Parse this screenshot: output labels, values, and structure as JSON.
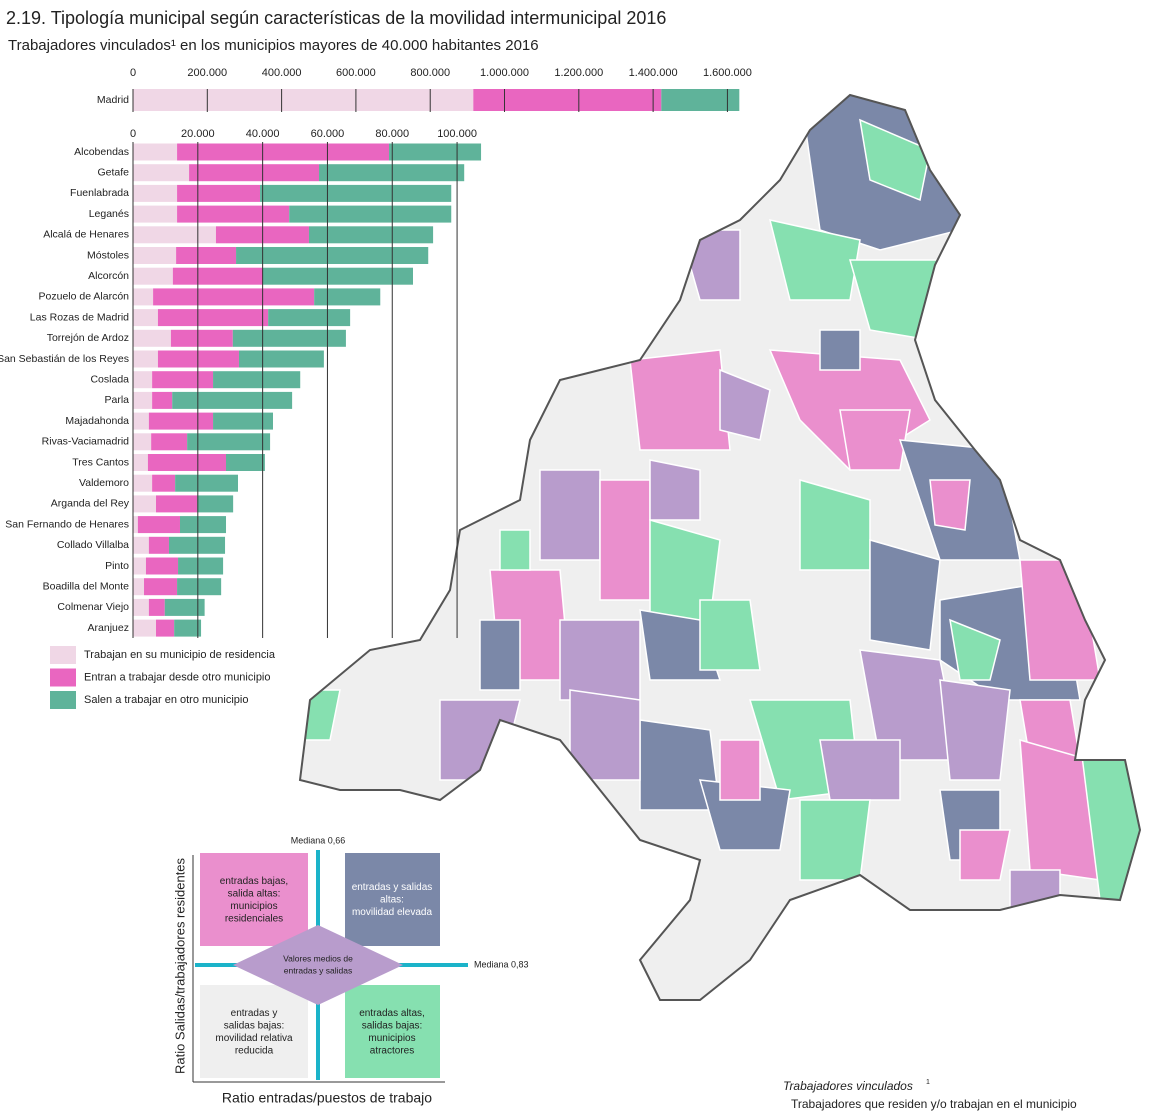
{
  "title": "2.19. Tipología municipal según características de la movilidad intermunicipal 2016",
  "subtitle": "Trabajadores vinculados¹ en los municipios mayores de 40.000 habitantes 2016",
  "chart_data": [
    {
      "type": "bar",
      "orientation": "horizontal",
      "stacked": true,
      "categories": [
        "Madrid"
      ],
      "series": [
        {
          "color": "#f0d7e6",
          "values": [
            916000
          ]
        },
        {
          "color": "#e966c0",
          "values": [
            506000
          ]
        },
        {
          "color": "#5fb39a",
          "values": [
            210000
          ]
        }
      ],
      "xlim": [
        0,
        1650000
      ],
      "xticks": [
        0,
        {
          "value": 200000,
          "label": "200.000"
        },
        {
          "value": 400000,
          "label": "400.000"
        },
        {
          "value": 600000,
          "label": "600.000"
        },
        {
          "value": 800000,
          "label": "800.000"
        },
        {
          "value": 1000000,
          "label": "1.000.000"
        },
        {
          "value": 1200000,
          "label": "1.200.000"
        },
        {
          "value": 1400000,
          "label": "1.400.000"
        },
        {
          "value": 1600000,
          "label": "1.600.000"
        }
      ],
      "grid": true
    },
    {
      "type": "bar",
      "orientation": "horizontal",
      "stacked": true,
      "categories": [
        "Alcobendas",
        "Getafe",
        "Fuenlabrada",
        "Leganés",
        "Alcalá de Henares",
        "Móstoles",
        "Alcorcón",
        "Pozuelo de Alarcón",
        "Las Rozas de Madrid",
        "Torrejón de Ardoz",
        "San Sebastián de los Reyes",
        "Coslada",
        "Parla",
        "Majadahonda",
        "Rivas-Vaciamadrid",
        "Tres Cantos",
        "Valdemoro",
        "Arganda del Rey",
        "San Fernando de Henares",
        "Collado Villalba",
        "Pinto",
        "Boadilla del Monte",
        "Colmenar Viejo",
        "Aranjuez"
      ],
      "series": [
        {
          "name": "Trabajan en su municipio de residencia",
          "color": "#f0d7e6",
          "values": [
            13600,
            17300,
            13600,
            13600,
            25600,
            13300,
            12300,
            6200,
            7700,
            11700,
            7700,
            5900,
            5900,
            4900,
            5600,
            4600,
            5900,
            7100,
            1500,
            4900,
            4000,
            3400,
            4900,
            7100
          ]
        },
        {
          "name": "Entran a trabajar desde otro municipio",
          "color": "#e966c0",
          "values": [
            65400,
            40100,
            25600,
            34600,
            28700,
            18500,
            27800,
            49700,
            34000,
            19100,
            25000,
            18800,
            6200,
            19800,
            11100,
            24100,
            7100,
            12700,
            13000,
            6200,
            9900,
            10200,
            4900,
            5600
          ]
        },
        {
          "name": "Salen a trabajar en otro municipio",
          "color": "#5fb39a",
          "values": [
            28400,
            44800,
            59000,
            50000,
            38300,
            59300,
            46300,
            20400,
            25300,
            34900,
            26200,
            26900,
            37000,
            18500,
            25600,
            12000,
            19400,
            11100,
            14200,
            17300,
            13900,
            13600,
            12300,
            8300
          ]
        }
      ],
      "xlim": [
        0,
        108000
      ],
      "xticks": [
        0,
        {
          "value": 20000,
          "label": "20.000"
        },
        {
          "value": 40000,
          "label": "40.000"
        },
        {
          "value": 60000,
          "label": "60.000"
        },
        {
          "value": 80000,
          "label": "80.000"
        },
        {
          "value": 100000,
          "label": "100.000"
        }
      ],
      "grid": true
    }
  ],
  "diagram": {
    "y_label": "Ratio Salidas/trabajadores residentes",
    "x_label": "Ratio entradas/puestos de trabajo",
    "median_x": "Mediana 0,66",
    "median_y": "Mediana 0,83",
    "quadrants": [
      [
        "entradas bajas,",
        "salida altas:",
        "municipios",
        "residenciales"
      ],
      [
        "entradas y salidas",
        "altas:",
        "movilidad elevada"
      ],
      [
        "entradas y",
        "salidas bajas:",
        "movilidad relativa",
        "reducida"
      ],
      [
        "entradas altas,",
        "salidas bajas:",
        "municipios",
        "atractores"
      ]
    ],
    "center": [
      "Valores medios de",
      "entradas y salidas"
    ]
  },
  "footnote": {
    "term": "Trabajadores vinculados",
    "mark": "1",
    "text": "Trabajadores que residen y/o trabajan en el municipio"
  }
}
